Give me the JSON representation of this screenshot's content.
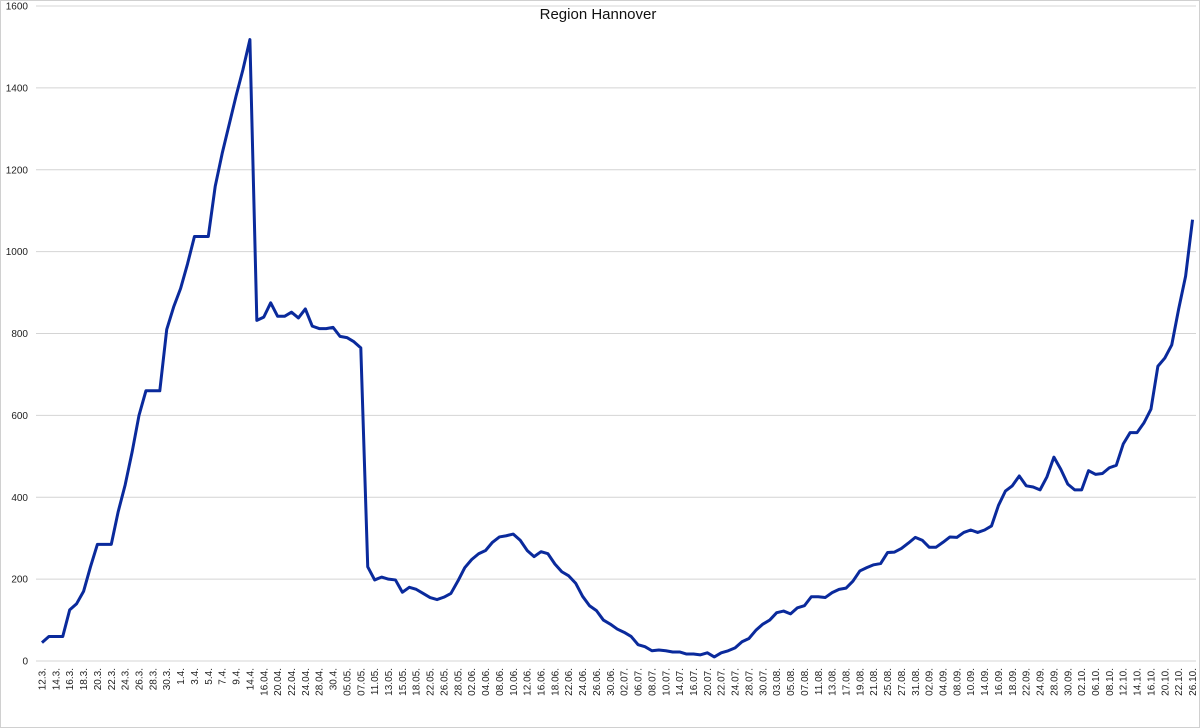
{
  "chart_data": {
    "type": "line",
    "title": "Region Hannover",
    "categories": [
      "12.3.",
      null,
      "14.3.",
      null,
      "16.3.",
      null,
      "18.3.",
      null,
      "20.3.",
      null,
      "22.3.",
      null,
      "24.3.",
      null,
      "26.3.",
      null,
      "28.3.",
      null,
      "30.3.",
      null,
      "1.4.",
      null,
      "3.4.",
      null,
      "5.4.",
      null,
      "7.4.",
      null,
      "9.4.",
      null,
      "14.4.",
      null,
      "16.04.",
      null,
      "20.04.",
      null,
      "22.04.",
      null,
      "24.04.",
      null,
      "28.04.",
      null,
      "30.4.",
      null,
      "05.05.",
      null,
      "07.05.",
      null,
      "11.05.",
      null,
      "13.05.",
      null,
      "15.05.",
      null,
      "18.05.",
      null,
      "22.05.",
      null,
      "26.05.",
      null,
      "28.05.",
      null,
      "02.06.",
      null,
      "04.06.",
      null,
      "08.06.",
      null,
      "10.06.",
      null,
      "12.06.",
      null,
      "16.06.",
      null,
      "18.06.",
      null,
      "22.06.",
      null,
      "24.06.",
      null,
      "26.06.",
      null,
      "30.06.",
      null,
      "02.07.",
      null,
      "06.07.",
      null,
      "08.07.",
      null,
      "10.07.",
      null,
      "14.07.",
      null,
      "16.07.",
      null,
      "20.07.",
      null,
      "22.07.",
      null,
      "24.07.",
      null,
      "28.07.",
      null,
      "30.07.",
      null,
      "03.08.",
      null,
      "05.08.",
      null,
      "07.08.",
      null,
      "11.08.",
      null,
      "13.08.",
      null,
      "17.08.",
      null,
      "19.08.",
      null,
      "21.08.",
      null,
      "25.08.",
      null,
      "27.08.",
      null,
      "31.08.",
      null,
      "02.09.",
      null,
      "04.09.",
      null,
      "08.09.",
      null,
      "10.09.",
      null,
      "14.09.",
      null,
      "16.09.",
      null,
      "18.09.",
      null,
      "22.09.",
      null,
      "24.09.",
      null,
      "28.09.",
      null,
      "30.09.",
      null,
      "02.10.",
      null,
      "06.10.",
      null,
      "08.10.",
      null,
      "12.10.",
      null,
      "14.10.",
      null,
      "16.10.",
      null,
      "20.10.",
      null,
      "22.10.",
      null,
      "26.10."
    ],
    "series": [
      {
        "color": "#0a2a9c",
        "values": [
          45,
          60,
          60,
          60,
          125,
          140,
          170,
          230,
          285,
          285,
          285,
          365,
          430,
          510,
          600,
          660,
          660,
          660,
          810,
          865,
          910,
          970,
          1037,
          1037,
          1037,
          1160,
          1240,
          1310,
          1380,
          1445,
          1518,
          832,
          840,
          875,
          842,
          842,
          852,
          838,
          860,
          818,
          812,
          812,
          815,
          793,
          790,
          780,
          765,
          230,
          198,
          205,
          200,
          198,
          168,
          180,
          175,
          165,
          155,
          150,
          156,
          165,
          195,
          228,
          248,
          262,
          270,
          290,
          303,
          306,
          310,
          295,
          270,
          255,
          267,
          262,
          237,
          218,
          208,
          190,
          158,
          135,
          123,
          100,
          90,
          78,
          70,
          60,
          40,
          35,
          25,
          27,
          25,
          22,
          22,
          17,
          17,
          15,
          20,
          10,
          20,
          25,
          32,
          47,
          55,
          75,
          90,
          100,
          118,
          122,
          115,
          130,
          135,
          157,
          157,
          155,
          167,
          175,
          178,
          195,
          220,
          228,
          235,
          238,
          265,
          266,
          275,
          288,
          302,
          295,
          278,
          278,
          290,
          303,
          302,
          314,
          320,
          314,
          320,
          330,
          380,
          415,
          428,
          452,
          428,
          425,
          418,
          450,
          498,
          468,
          432,
          418,
          418,
          465,
          456,
          458,
          472,
          478,
          530,
          558,
          558,
          582,
          615,
          720,
          740,
          772,
          860,
          940,
          1078
        ]
      }
    ],
    "ylim": [
      0,
      1600
    ],
    "yticks": [
      0,
      200,
      400,
      600,
      800,
      1000,
      1200,
      1400,
      1600
    ],
    "grid": true
  }
}
